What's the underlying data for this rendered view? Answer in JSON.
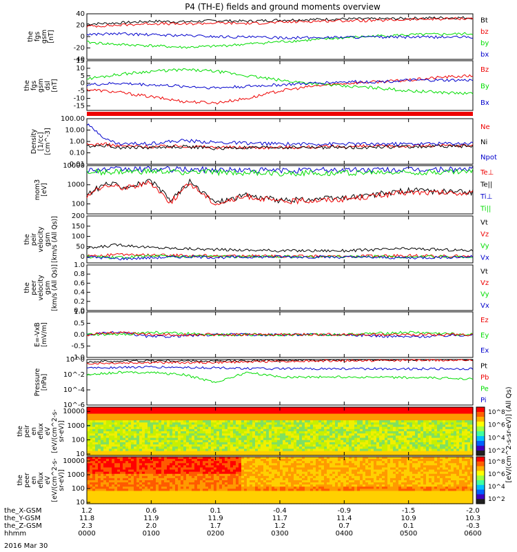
{
  "title": "P4 (TH-E) fields and ground moments overview",
  "date_label": "2016 Mar 30",
  "colors": {
    "black": "#000000",
    "red": "#ee0000",
    "green": "#00dd00",
    "blue": "#0000cc"
  },
  "x_axis": {
    "row_labels": [
      "the_X-GSM",
      "the_Y-GSM",
      "the_Z-GSM",
      "hhmm"
    ],
    "ticks": [
      {
        "x": 0,
        "vals": [
          "1.2",
          "11.8",
          "2.3",
          "0000"
        ]
      },
      {
        "x": 1,
        "vals": [
          "0.6",
          "11.9",
          "2.0",
          "0100"
        ]
      },
      {
        "x": 2,
        "vals": [
          "0.1",
          "11.9",
          "1.7",
          "0200"
        ]
      },
      {
        "x": 3,
        "vals": [
          "-0.4",
          "11.7",
          "1.2",
          "0300"
        ]
      },
      {
        "x": 4,
        "vals": [
          "-0.9",
          "11.4",
          "0.7",
          "0400"
        ]
      },
      {
        "x": 5,
        "vals": [
          "-1.5",
          "10.9",
          "0.1",
          "0500"
        ]
      },
      {
        "x": 6,
        "vals": [
          "-2.0",
          "10.3",
          "-0.3",
          "0600"
        ]
      }
    ]
  },
  "colorbar_label": "[eV/(cm^2-s-sr-eV)] (All Qs)",
  "chart_data": [
    {
      "type": "line",
      "ylabel": [
        "the",
        "fgs",
        "gsm",
        "[nT]"
      ],
      "ylim": [
        -40,
        40
      ],
      "yticks": [
        "40",
        "20",
        "0",
        "-20",
        "-40"
      ],
      "tickvals": [
        40,
        20,
        0,
        -20,
        -40
      ],
      "legend": [
        {
          "name": "Bt",
          "color": "#000000"
        },
        {
          "name": "bz",
          "color": "#ee0000"
        },
        {
          "name": "by",
          "color": "#00dd00"
        },
        {
          "name": "bx",
          "color": "#0000cc"
        }
      ],
      "series": [
        {
          "name": "Bt",
          "color": "#000000",
          "x": [
            0,
            0.5,
            1,
            1.5,
            2,
            2.5,
            3,
            3.5,
            4,
            4.5,
            5,
            5.5,
            6
          ],
          "y": [
            22,
            24,
            27,
            26,
            28,
            27,
            29,
            30,
            31,
            31,
            32,
            33,
            33
          ]
        },
        {
          "name": "bz",
          "color": "#ee0000",
          "x": [
            0,
            0.5,
            1,
            1.5,
            2,
            2.5,
            3,
            3.5,
            4,
            4.5,
            5,
            5.5,
            6
          ],
          "y": [
            18,
            20,
            23,
            22,
            24,
            23,
            25,
            27,
            28,
            28,
            30,
            31,
            32
          ]
        },
        {
          "name": "by",
          "color": "#00dd00",
          "x": [
            0,
            0.5,
            1,
            1.5,
            2,
            2.5,
            3,
            3.5,
            4,
            4.5,
            5,
            5.5,
            6
          ],
          "y": [
            -10,
            -14,
            -16,
            -19,
            -17,
            -13,
            -9,
            -6,
            -2,
            1,
            3,
            4,
            5
          ]
        },
        {
          "name": "bx",
          "color": "#0000cc",
          "x": [
            0,
            0.5,
            1,
            1.5,
            2,
            2.5,
            3,
            3.5,
            4,
            4.5,
            5,
            5.5,
            6
          ],
          "y": [
            4,
            5,
            3,
            2,
            0,
            -1,
            -2,
            -2,
            -1,
            -1,
            -1,
            -1,
            -1
          ]
        }
      ]
    },
    {
      "type": "line",
      "ylabel": [
        "the",
        "fgs",
        "gsm",
        "dsl",
        "[nT]"
      ],
      "ylim": [
        -18,
        15
      ],
      "yticks": [
        "15",
        "10",
        "5",
        "0",
        "-5",
        "-10",
        "-15"
      ],
      "tickvals": [
        15,
        10,
        5,
        0,
        -5,
        -10,
        -15
      ],
      "legend": [
        {
          "name": "Bz",
          "color": "#ee0000"
        },
        {
          "name": "By",
          "color": "#00dd00"
        },
        {
          "name": "Bx",
          "color": "#0000cc"
        }
      ],
      "series": [
        {
          "name": "Bz",
          "color": "#ee0000",
          "x": [
            0,
            0.5,
            1,
            1.5,
            2,
            2.5,
            3,
            3.5,
            4,
            4.5,
            5,
            5.5,
            6
          ],
          "y": [
            -4,
            -6,
            -9,
            -12,
            -13,
            -10,
            -5,
            -2,
            0,
            1,
            2,
            4,
            5
          ]
        },
        {
          "name": "By",
          "color": "#00dd00",
          "x": [
            0,
            0.5,
            1,
            1.5,
            2,
            2.5,
            3,
            3.5,
            4,
            4.5,
            5,
            5.5,
            6
          ],
          "y": [
            3,
            6,
            8,
            9,
            8,
            5,
            2,
            0,
            -2,
            -3,
            -5,
            -6,
            -7
          ]
        },
        {
          "name": "Bx",
          "color": "#0000cc",
          "x": [
            0,
            0.5,
            1,
            1.5,
            2,
            2.5,
            3,
            3.5,
            4,
            4.5,
            5,
            5.5,
            6
          ],
          "y": [
            -1,
            0,
            -1,
            -2,
            -3,
            -2,
            -1,
            0,
            1,
            1,
            2,
            2,
            2
          ]
        }
      ]
    },
    {
      "type": "line",
      "ylabel": [
        "Density",
        "[1/cc]",
        "[cm^-3]"
      ],
      "scale": "log",
      "ylim": [
        0.01,
        100
      ],
      "yticks": [
        "100.00",
        "10.00",
        "1.00",
        "0.10",
        "0.01"
      ],
      "tickvals": [
        100,
        10,
        1,
        0.1,
        0.01
      ],
      "legend": [
        {
          "name": "Ne",
          "color": "#ee0000"
        },
        {
          "name": "Ni",
          "color": "#000000"
        },
        {
          "name": "Npot",
          "color": "#0000cc"
        }
      ],
      "series": [
        {
          "name": "Ne",
          "color": "#ee0000",
          "x": [
            0,
            0.25,
            0.5,
            1,
            1.5,
            2,
            3,
            4,
            5,
            6
          ],
          "y": [
            0.5,
            0.6,
            0.4,
            0.35,
            0.4,
            0.3,
            0.3,
            0.35,
            0.4,
            0.45
          ]
        },
        {
          "name": "Ni",
          "color": "#000000",
          "x": [
            0,
            0.25,
            0.5,
            1,
            1.5,
            2,
            3,
            4,
            5,
            6
          ],
          "y": [
            0.4,
            0.45,
            0.3,
            0.3,
            0.35,
            0.25,
            0.3,
            0.3,
            0.35,
            0.4
          ]
        },
        {
          "name": "Npot",
          "color": "#0000cc",
          "x": [
            0,
            0.2,
            0.3,
            0.5,
            1,
            1.5,
            2,
            3,
            4,
            5,
            6
          ],
          "y": [
            30,
            5,
            1.5,
            0.6,
            0.7,
            1.2,
            0.8,
            0.6,
            0.6,
            0.6,
            0.7
          ]
        }
      ]
    },
    {
      "type": "line",
      "ylabel": [
        "mom3",
        "[eV]"
      ],
      "scale": "log",
      "ylim": [
        30,
        10000
      ],
      "yticks": [
        "10000",
        "1000",
        "100"
      ],
      "tickvals": [
        10000,
        1000,
        100
      ],
      "legend": [
        {
          "name": "Te⊥",
          "color": "#ee0000"
        },
        {
          "name": "Te||",
          "color": "#000000"
        },
        {
          "name": "Ti⊥",
          "color": "#0000cc"
        },
        {
          "name": "Ti||",
          "color": "#00dd00"
        }
      ],
      "series": [
        {
          "name": "Ti⊥",
          "color": "#0000cc",
          "x": [
            0,
            1,
            2,
            3,
            4,
            5,
            6
          ],
          "y": [
            6000,
            6500,
            6000,
            5500,
            6000,
            6000,
            6500
          ]
        },
        {
          "name": "Ti||",
          "color": "#00dd00",
          "x": [
            0,
            1,
            2,
            3,
            4,
            5,
            6
          ],
          "y": [
            4500,
            4800,
            4500,
            4000,
            4200,
            4500,
            4800
          ]
        },
        {
          "name": "Te||",
          "color": "#000000",
          "x": [
            0,
            0.3,
            0.6,
            1,
            1.3,
            1.6,
            2,
            2.5,
            3,
            4,
            5,
            6
          ],
          "y": [
            300,
            1200,
            800,
            1500,
            150,
            1400,
            120,
            300,
            150,
            200,
            500,
            400
          ]
        },
        {
          "name": "Te⊥",
          "color": "#ee0000",
          "x": [
            0,
            0.3,
            0.6,
            1,
            1.3,
            1.6,
            2,
            2.5,
            3,
            4,
            5,
            6
          ],
          "y": [
            250,
            1000,
            700,
            1300,
            120,
            1200,
            100,
            250,
            130,
            180,
            400,
            350
          ]
        }
      ]
    },
    {
      "type": "line",
      "ylabel": [
        "the",
        "peir",
        "velocity",
        "gsm",
        "[km/s (All Qs)]"
      ],
      "ylim": [
        -30,
        200
      ],
      "yticks": [
        "200",
        "150",
        "100",
        "50",
        "0"
      ],
      "tickvals": [
        200,
        150,
        100,
        50,
        0
      ],
      "legend": [
        {
          "name": "Vt",
          "color": "#000000"
        },
        {
          "name": "Vz",
          "color": "#ee0000"
        },
        {
          "name": "Vy",
          "color": "#00dd00"
        },
        {
          "name": "Vx",
          "color": "#0000cc"
        }
      ],
      "series": [
        {
          "name": "Vt",
          "color": "#000000",
          "x": [
            0,
            0.5,
            1,
            1.5,
            2,
            3,
            4,
            5,
            6
          ],
          "y": [
            40,
            60,
            45,
            40,
            35,
            30,
            30,
            40,
            30
          ]
        },
        {
          "name": "Vz",
          "color": "#ee0000",
          "x": [
            0,
            0.5,
            1,
            1.5,
            2,
            3,
            4,
            5,
            6
          ],
          "y": [
            5,
            10,
            8,
            6,
            4,
            3,
            2,
            5,
            3
          ]
        },
        {
          "name": "Vy",
          "color": "#00dd00",
          "x": [
            0,
            0.5,
            1,
            1.5,
            2,
            3,
            4,
            5,
            6
          ],
          "y": [
            0,
            -5,
            5,
            0,
            2,
            0,
            1,
            0,
            0
          ]
        },
        {
          "name": "Vx",
          "color": "#0000cc",
          "x": [
            0,
            0.5,
            1,
            1.5,
            2,
            3,
            4,
            5,
            6
          ],
          "y": [
            0,
            -10,
            -5,
            0,
            -3,
            0,
            -2,
            -5,
            0
          ]
        }
      ]
    },
    {
      "type": "line",
      "ylabel": [
        "the",
        "peer",
        "velocity",
        "gsm",
        "[km/s (All Qs)]"
      ],
      "ylim": [
        0,
        1
      ],
      "yticks": [
        "1.0",
        "0.8",
        "0.6",
        "0.4",
        "0.2",
        "0.0"
      ],
      "tickvals": [
        1,
        0.8,
        0.6,
        0.4,
        0.2,
        0
      ],
      "legend": [
        {
          "name": "Vt",
          "color": "#000000"
        },
        {
          "name": "Vz",
          "color": "#ee0000"
        },
        {
          "name": "Vy",
          "color": "#00dd00"
        },
        {
          "name": "Vx",
          "color": "#0000cc"
        }
      ],
      "series": []
    },
    {
      "type": "line",
      "ylabel": [
        "E=-VxB",
        "[mV/m]"
      ],
      "ylim": [
        -1,
        1
      ],
      "yticks": [
        "1.0",
        "0.5",
        "0.0",
        "-0.5",
        "-1.0"
      ],
      "tickvals": [
        1,
        0.5,
        0,
        -0.5,
        -1
      ],
      "legend": [
        {
          "name": "Ez",
          "color": "#ee0000"
        },
        {
          "name": "Ey",
          "color": "#00dd00"
        },
        {
          "name": "Ex",
          "color": "#0000cc"
        }
      ],
      "series": [
        {
          "name": "Ex",
          "color": "#0000cc",
          "x": [
            0,
            0.5,
            1,
            2,
            3,
            4,
            5,
            6
          ],
          "y": [
            0,
            0.1,
            -0.1,
            0,
            0,
            0,
            -0.1,
            0
          ]
        },
        {
          "name": "Ey",
          "color": "#00dd00",
          "x": [
            0,
            0.5,
            1,
            2,
            3,
            4,
            5,
            6
          ],
          "y": [
            0,
            0,
            0.1,
            0,
            0,
            0,
            0.1,
            0
          ]
        },
        {
          "name": "Ez",
          "color": "#ee0000",
          "x": [
            0,
            0.5,
            1,
            2,
            3,
            4,
            5,
            6
          ],
          "y": [
            0,
            0.1,
            0,
            0,
            0,
            0,
            0,
            0
          ]
        }
      ]
    },
    {
      "type": "line",
      "ylabel": [
        "Pressure",
        "[nPa]"
      ],
      "scale": "log",
      "ylim": [
        1e-06,
        1
      ],
      "yticks": [
        "10^0",
        "10^-2",
        "10^-4",
        "10^-6"
      ],
      "tickvals": [
        1,
        0.01,
        0.0001,
        1e-06
      ],
      "legend": [
        {
          "name": "Pt",
          "color": "#000000"
        },
        {
          "name": "Pb",
          "color": "#ee0000"
        },
        {
          "name": "Pe",
          "color": "#00dd00"
        },
        {
          "name": "Pi",
          "color": "#0000cc"
        }
      ],
      "series": [
        {
          "name": "Pt",
          "color": "#000000",
          "x": [
            0,
            1,
            2,
            3,
            4,
            5,
            6
          ],
          "y": [
            0.5,
            0.7,
            0.6,
            0.8,
            0.9,
            1,
            1
          ]
        },
        {
          "name": "Pb",
          "color": "#ee0000",
          "x": [
            0,
            1,
            2,
            3,
            4,
            5,
            6
          ],
          "y": [
            0.3,
            0.4,
            0.4,
            0.6,
            0.7,
            0.8,
            0.9
          ]
        },
        {
          "name": "Pi",
          "color": "#0000cc",
          "x": [
            0,
            1,
            2,
            3,
            4,
            5,
            6
          ],
          "y": [
            0.08,
            0.1,
            0.08,
            0.06,
            0.06,
            0.06,
            0.06
          ]
        },
        {
          "name": "Pe",
          "color": "#00dd00",
          "x": [
            0,
            0.5,
            1,
            1.5,
            2,
            2.5,
            3,
            4,
            5,
            6
          ],
          "y": [
            0.01,
            0.02,
            0.02,
            0.01,
            0.001,
            0.02,
            0.005,
            0.005,
            0.004,
            0.003
          ]
        }
      ]
    },
    {
      "type": "heatmap",
      "ylabel": [
        "the",
        "peir",
        "en",
        "eflux",
        "eV",
        "[eV/(cm^2-s-",
        "sr-eV)]"
      ],
      "scale": "log",
      "ylim": [
        8,
        20000
      ],
      "yticks": [
        "10000",
        "1000",
        "100",
        "10"
      ],
      "tickvals": [
        10000,
        1000,
        100,
        10
      ],
      "colorbar_ticks": [
        "10^8",
        "10^6",
        "10^4",
        "10^2"
      ]
    },
    {
      "type": "heatmap",
      "ylabel": [
        "the",
        "peer",
        "en",
        "eflux",
        "eV",
        "[eV/(cm^2-s-",
        "sr-eV)]"
      ],
      "scale": "log",
      "ylim": [
        8,
        20000
      ],
      "yticks": [
        "10000",
        "1000",
        "100",
        "10"
      ],
      "tickvals": [
        10000,
        1000,
        100,
        10
      ],
      "colorbar_ticks": [
        "10^8",
        "10^6",
        "10^4",
        "10^2"
      ]
    }
  ]
}
